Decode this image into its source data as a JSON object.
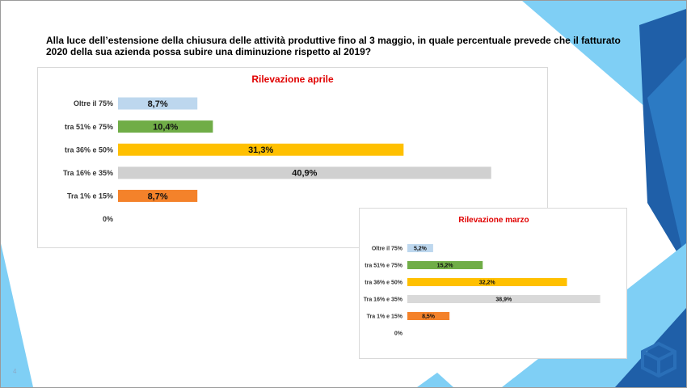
{
  "slide": {
    "question": "Alla luce dell’estensione della chiusura delle attività produttive fino al 3 maggio, in quale percentuale prevede che il fatturato 2020 della sua azienda possa subire una diminuzione rispetto al 2019?",
    "page_number": "4"
  },
  "colors": {
    "title_red": "#e00000",
    "decor_dark_blue": "#1f5fa8",
    "decor_light_blue": "#7fcff5",
    "logo_blue": "#2a6fb8"
  },
  "chart_data": [
    {
      "type": "bar",
      "orientation": "horizontal",
      "title": "Rilevazione  aprile",
      "categories": [
        "Oltre il 75%",
        "tra 51% e 75%",
        "tra 36% e 50%",
        "Tra 16% e 35%",
        "Tra 1% e 15%",
        "0%"
      ],
      "values": [
        8.7,
        10.4,
        31.3,
        40.9,
        8.7,
        0
      ],
      "value_labels": [
        "8,7%",
        "10,4%",
        "31,3%",
        "40,9%",
        "8,7%",
        ""
      ],
      "colors": [
        "#bdd7ee",
        "#70ad47",
        "#ffc000",
        "#d0d0d0",
        "#f4822a",
        "#ffffff"
      ],
      "xlim": [
        0,
        45
      ],
      "grid": false,
      "legend": "none"
    },
    {
      "type": "bar",
      "orientation": "horizontal",
      "title": "Rilevazione marzo",
      "categories": [
        "Oltre il 75%",
        "tra 51% e 75%",
        "tra 36% e 50%",
        "Tra 16% e 35%",
        "Tra 1% e 15%",
        "0%"
      ],
      "values": [
        5.2,
        15.2,
        32.2,
        38.9,
        8.5,
        0
      ],
      "value_labels": [
        "5,2%",
        "15,2%",
        "32,2%",
        "38,9%",
        "8,5%",
        ""
      ],
      "colors": [
        "#bdd7ee",
        "#70ad47",
        "#ffc000",
        "#d9d9d9",
        "#f4822a",
        "#ffffff"
      ],
      "xlim": [
        0,
        45
      ],
      "grid": false,
      "legend": "none"
    }
  ]
}
